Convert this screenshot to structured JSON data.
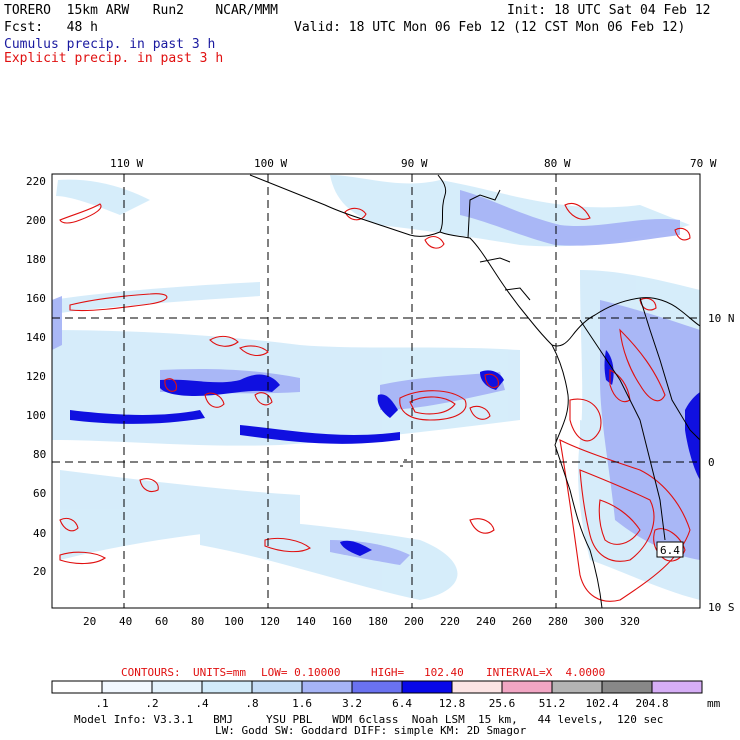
{
  "header": {
    "model_line": "TORERO  15km ARW   Run2    NCAR/MMM",
    "init_line": "Init: 18 UTC Sat 04 Feb 12",
    "fcst_line": "Fcst:   48 h",
    "valid_line": "Valid: 18 UTC Mon 06 Feb 12 (12 CST Mon 06 Feb 12)",
    "field_cumulus": "Cumulus precip. in past 3 h",
    "field_explicit": "Explicit precip. in past 3 h"
  },
  "map": {
    "top_lon_labels": [
      "110 W",
      "100 W",
      "90 W",
      "80 W",
      "70 W"
    ],
    "right_lat_labels": [
      "10 N",
      "0",
      "10 S"
    ],
    "left_y_ticks": [
      "220",
      "200",
      "180",
      "160",
      "140",
      "120",
      "100",
      "80",
      "60",
      "40",
      "20"
    ],
    "bottom_x_ticks": [
      "20",
      "40",
      "60",
      "80",
      "100",
      "120",
      "140",
      "160",
      "180",
      "200",
      "220",
      "240",
      "260",
      "280",
      "300",
      "320"
    ],
    "contour_label": "6.4"
  },
  "contours_info": {
    "label_contours": "CONTOURS:",
    "label_units": "UNITS=mm",
    "label_low": "LOW= 0.10000",
    "label_high": "HIGH=   102.40",
    "label_interval": "INTERVAL=X  4.0000"
  },
  "legend": {
    "values": [
      ".1",
      ".2",
      ".4",
      ".8",
      "1.6",
      "3.2",
      "6.4",
      "12.8",
      "25.6",
      "51.2",
      "102.4",
      "204.8"
    ],
    "units": "mm",
    "colors": [
      "#ffffff",
      "#f2f8ff",
      "#e4f2fc",
      "#d2ebfa",
      "#c4dcf6",
      "#a6b4f6",
      "#6a72f0",
      "#0808e8",
      "#fce4e4",
      "#f2a6c4",
      "#b4b4b4",
      "#888888",
      "#d6aef6"
    ]
  },
  "footer": {
    "model_info_line1": "Model Info: V3.3.1   BMJ     YSU PBL   WDM 6class  Noah LSM  15 km,   44 levels,  120 sec",
    "model_info_line2": "LW: Godd SW: Goddard DIFF: simple KM: 2D Smagor"
  }
}
